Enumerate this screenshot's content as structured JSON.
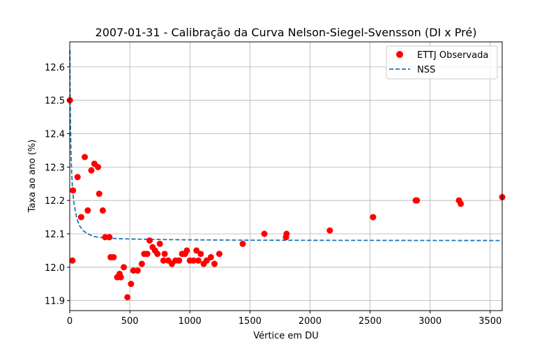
{
  "chart_data": {
    "type": "scatter",
    "title": "2007-01-31 - Calibração da Curva Nelson-Siegel-Svensson (DI x Pré)",
    "xlabel": "Vértice em DU",
    "ylabel": "Taxa ao ano (%)",
    "xlim": [
      0,
      3600
    ],
    "ylim": [
      11.87,
      12.675
    ],
    "xticks": [
      0,
      500,
      1000,
      1500,
      2000,
      2500,
      3000,
      3500
    ],
    "yticks": [
      11.9,
      12.0,
      12.1,
      12.2,
      12.3,
      12.4,
      12.5,
      12.6
    ],
    "ytick_labels": [
      "11.9",
      "12.0",
      "12.1",
      "12.2",
      "12.3",
      "12.4",
      "12.5",
      "12.6"
    ],
    "grid": true,
    "legend_position": "top-right",
    "series": [
      {
        "name": "ETTJ Observada",
        "style": "markers",
        "color": "#ff0000",
        "points": [
          [
            1,
            12.5
          ],
          [
            22,
            12.02
          ],
          [
            27,
            12.23
          ],
          [
            65,
            12.27
          ],
          [
            95,
            12.15
          ],
          [
            125,
            12.33
          ],
          [
            150,
            12.17
          ],
          [
            180,
            12.29
          ],
          [
            205,
            12.31
          ],
          [
            235,
            12.3
          ],
          [
            245,
            12.22
          ],
          [
            275,
            12.17
          ],
          [
            295,
            12.09
          ],
          [
            330,
            12.09
          ],
          [
            340,
            12.03
          ],
          [
            365,
            12.03
          ],
          [
            395,
            11.97
          ],
          [
            415,
            11.98
          ],
          [
            425,
            11.97
          ],
          [
            450,
            12.0
          ],
          [
            480,
            11.91
          ],
          [
            510,
            11.95
          ],
          [
            530,
            11.99
          ],
          [
            565,
            11.99
          ],
          [
            600,
            12.01
          ],
          [
            620,
            12.04
          ],
          [
            645,
            12.04
          ],
          [
            665,
            12.08
          ],
          [
            690,
            12.06
          ],
          [
            710,
            12.05
          ],
          [
            730,
            12.04
          ],
          [
            750,
            12.07
          ],
          [
            780,
            12.02
          ],
          [
            790,
            12.04
          ],
          [
            820,
            12.02
          ],
          [
            850,
            12.01
          ],
          [
            880,
            12.02
          ],
          [
            910,
            12.02
          ],
          [
            935,
            12.04
          ],
          [
            960,
            12.04
          ],
          [
            975,
            12.05
          ],
          [
            1000,
            12.02
          ],
          [
            1030,
            12.02
          ],
          [
            1055,
            12.05
          ],
          [
            1070,
            12.02
          ],
          [
            1090,
            12.04
          ],
          [
            1115,
            12.01
          ],
          [
            1140,
            12.02
          ],
          [
            1175,
            12.03
          ],
          [
            1205,
            12.01
          ],
          [
            1245,
            12.04
          ],
          [
            1440,
            12.07
          ],
          [
            1620,
            12.1
          ],
          [
            1800,
            12.09
          ],
          [
            1805,
            12.1
          ],
          [
            2165,
            12.11
          ],
          [
            2525,
            12.15
          ],
          [
            2880,
            12.2
          ],
          [
            2890,
            12.2
          ],
          [
            3240,
            12.2
          ],
          [
            3255,
            12.19
          ],
          [
            3600,
            12.21
          ]
        ]
      },
      {
        "name": "NSS",
        "style": "dashed-line",
        "color": "#1f77b4",
        "points": [
          [
            1,
            12.65
          ],
          [
            3,
            12.53
          ],
          [
            6,
            12.43
          ],
          [
            10,
            12.35
          ],
          [
            15,
            12.29
          ],
          [
            22,
            12.24
          ],
          [
            32,
            12.2
          ],
          [
            45,
            12.17
          ],
          [
            60,
            12.145
          ],
          [
            80,
            12.125
          ],
          [
            110,
            12.11
          ],
          [
            150,
            12.1
          ],
          [
            200,
            12.092
          ],
          [
            300,
            12.087
          ],
          [
            450,
            12.085
          ],
          [
            700,
            12.083
          ],
          [
            1000,
            12.082
          ],
          [
            1500,
            12.081
          ],
          [
            2000,
            12.0805
          ],
          [
            2500,
            12.0803
          ],
          [
            3000,
            12.0801
          ],
          [
            3600,
            12.08
          ]
        ]
      }
    ]
  }
}
